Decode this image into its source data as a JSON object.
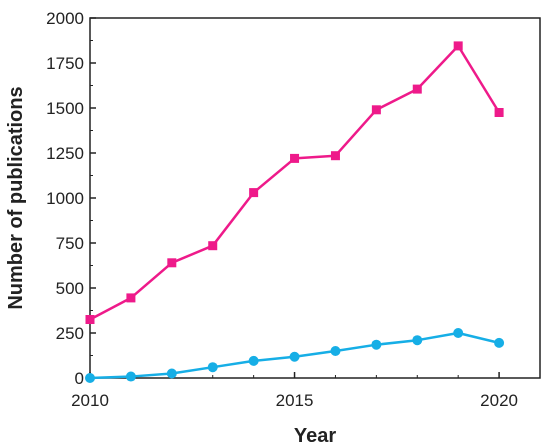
{
  "chart_data": {
    "type": "line",
    "xlabel": "Year",
    "ylabel": "Number of publications",
    "xlim": [
      2010,
      2021
    ],
    "ylim": [
      0,
      2000
    ],
    "x_ticks": [
      2010,
      2015,
      2020
    ],
    "y_ticks": [
      0,
      250,
      500,
      750,
      1000,
      1250,
      1500,
      1750,
      2000
    ],
    "x": [
      2010,
      2011,
      2012,
      2013,
      2014,
      2015,
      2016,
      2017,
      2018,
      2019,
      2020
    ],
    "series": [
      {
        "marker": "square",
        "color": "#ee1a8a",
        "values": [
          325,
          445,
          640,
          735,
          1030,
          1220,
          1235,
          1490,
          1605,
          1845,
          1475
        ]
      },
      {
        "marker": "circle",
        "color": "#16aee6",
        "values": [
          0,
          8,
          25,
          60,
          95,
          118,
          150,
          185,
          210,
          250,
          195
        ]
      }
    ],
    "grid": false,
    "legend": false
  }
}
